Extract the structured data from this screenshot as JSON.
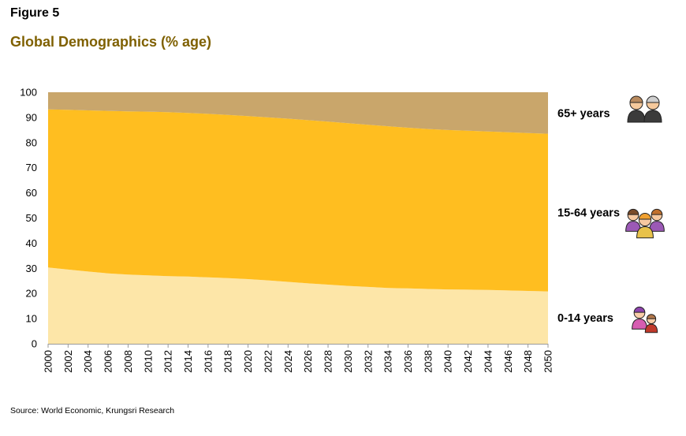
{
  "figure_label": "Figure 5",
  "source": "Source: World Economic, Krungsri Research",
  "colors": {
    "title": "#7f6000",
    "area_0_14": "#fde6a8",
    "area_15_64": "#ffbe20",
    "area_65": "#c9a66b",
    "elder_hair": "#b98a5e",
    "elder_skin": "#f5c99c",
    "elder_clothes": "#3b3b3b",
    "family_skin": "#f6c8a0",
    "family_hair": "#7a4b2a",
    "family_clothes": "#9b59b6",
    "kid_hair": "#8e44ad",
    "kid_skin": "#f8cda8",
    "kid_clothes": "#c0392b"
  },
  "chart_data": {
    "type": "area",
    "stacked": true,
    "title": "Global Demographics (% age)",
    "x": [
      2000,
      2002,
      2004,
      2006,
      2008,
      2010,
      2012,
      2014,
      2016,
      2018,
      2020,
      2022,
      2024,
      2026,
      2028,
      2030,
      2032,
      2034,
      2036,
      2038,
      2040,
      2042,
      2044,
      2046,
      2048,
      2050
    ],
    "ylim": [
      0,
      100
    ],
    "yticks": [
      0,
      10,
      20,
      30,
      40,
      50,
      60,
      70,
      80,
      90,
      100
    ],
    "grid": false,
    "series": [
      {
        "name": "0-14 years",
        "color_key": "area_0_14",
        "icon": "child-pair-icon",
        "values": [
          30.3,
          29.5,
          28.7,
          28.0,
          27.5,
          27.2,
          26.9,
          26.7,
          26.4,
          26.1,
          25.7,
          25.2,
          24.6,
          24.0,
          23.5,
          23.0,
          22.6,
          22.2,
          22.0,
          21.8,
          21.6,
          21.5,
          21.4,
          21.2,
          21.0,
          20.8
        ]
      },
      {
        "name": "15-64 years",
        "color_key": "area_15_64",
        "icon": "family-group-icon",
        "values": [
          62.9,
          63.5,
          64.1,
          64.6,
          64.9,
          65.1,
          65.2,
          65.1,
          65.0,
          64.9,
          64.8,
          64.8,
          64.9,
          64.9,
          64.8,
          64.7,
          64.5,
          64.3,
          63.9,
          63.6,
          63.4,
          63.2,
          63.0,
          62.9,
          62.8,
          62.7
        ]
      },
      {
        "name": "65+ years",
        "color_key": "area_65",
        "icon": "elderly-couple-icon",
        "values": [
          6.8,
          7.0,
          7.2,
          7.4,
          7.6,
          7.7,
          7.9,
          8.2,
          8.6,
          9.0,
          9.5,
          10.0,
          10.5,
          11.1,
          11.7,
          12.3,
          12.9,
          13.5,
          14.1,
          14.6,
          15.0,
          15.3,
          15.6,
          15.9,
          16.2,
          16.5
        ]
      }
    ]
  }
}
